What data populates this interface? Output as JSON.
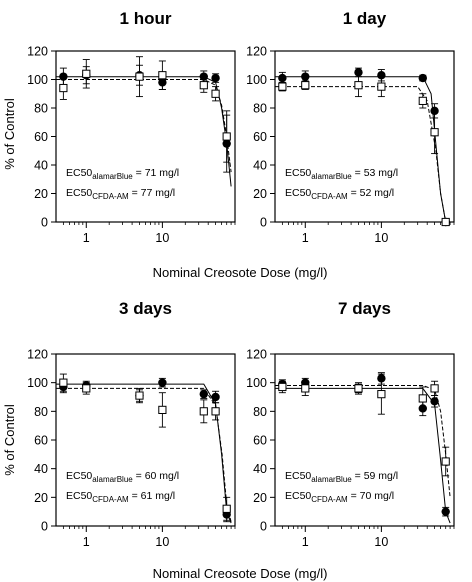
{
  "figure": {
    "xlabel": "Nominal Creosote Dose (mg/l)",
    "ylabel": "% of Control"
  },
  "chart_data": [
    {
      "type": "scatter",
      "title": "1 hour",
      "xscale": "log",
      "xlim": [
        0.4,
        90
      ],
      "ylim": [
        0,
        120
      ],
      "yticks": [
        0,
        20,
        40,
        60,
        80,
        100,
        120
      ],
      "xticks": [
        1,
        10
      ],
      "xtick_labels": [
        "1",
        "10"
      ],
      "annotations": [
        {
          "prefix": "EC50",
          "sub": "alamarBlue",
          "suffix": " = 71 mg/l"
        },
        {
          "prefix": "EC50",
          "sub": "CFDA-AM",
          "suffix": " = 77 mg/l"
        }
      ],
      "series": [
        {
          "marker": "filled-circle",
          "x": [
            0.5,
            1,
            5,
            10,
            35,
            50,
            70
          ],
          "y": [
            102,
            103,
            103,
            98,
            102,
            101,
            55
          ],
          "err": [
            6,
            6,
            7,
            5,
            4,
            3,
            20
          ],
          "fit_x": [
            0.4,
            35,
            50,
            60,
            70,
            80
          ],
          "fit_y": [
            102,
            102,
            98,
            80,
            55,
            25
          ]
        },
        {
          "marker": "open-square",
          "x": [
            0.5,
            1,
            5,
            10,
            35,
            50,
            70
          ],
          "y": [
            94,
            104,
            102,
            103,
            96,
            90,
            60
          ],
          "err": [
            8,
            10,
            14,
            10,
            5,
            5,
            18
          ],
          "fit_x": [
            0.4,
            35,
            50,
            60,
            70,
            80
          ],
          "fit_y": [
            100,
            100,
            96,
            82,
            60,
            35
          ]
        }
      ]
    },
    {
      "type": "scatter",
      "title": "1 day",
      "xscale": "log",
      "xlim": [
        0.4,
        90
      ],
      "ylim": [
        0,
        120
      ],
      "yticks": [
        0,
        20,
        40,
        60,
        80,
        100,
        120
      ],
      "xticks": [
        1,
        10
      ],
      "xtick_labels": [
        "1",
        "10"
      ],
      "annotations": [
        {
          "prefix": "EC50",
          "sub": "alamarBlue",
          "suffix": " = 53 mg/l"
        },
        {
          "prefix": "EC50",
          "sub": "CFDA-AM",
          "suffix": " = 52 mg/l"
        }
      ],
      "series": [
        {
          "marker": "filled-circle",
          "x": [
            0.5,
            1,
            5,
            10,
            35,
            50,
            70
          ],
          "y": [
            101,
            102,
            105,
            103,
            101,
            78,
            0
          ],
          "err": [
            4,
            4,
            3,
            4,
            2,
            5,
            2
          ],
          "fit_x": [
            0.4,
            35,
            45,
            53,
            60,
            70
          ],
          "fit_y": [
            102,
            102,
            90,
            50,
            20,
            0
          ]
        },
        {
          "marker": "open-square",
          "x": [
            0.5,
            1,
            5,
            10,
            35,
            50,
            70
          ],
          "y": [
            95,
            96,
            96,
            95,
            85,
            63,
            0
          ],
          "err": [
            3,
            3,
            8,
            7,
            5,
            15,
            2
          ],
          "fit_x": [
            0.4,
            30,
            40,
            52,
            60,
            70
          ],
          "fit_y": [
            95,
            95,
            85,
            50,
            20,
            0
          ]
        }
      ]
    },
    {
      "type": "scatter",
      "title": "3 days",
      "xscale": "log",
      "xlim": [
        0.4,
        90
      ],
      "ylim": [
        0,
        120
      ],
      "yticks": [
        0,
        20,
        40,
        60,
        80,
        100,
        120
      ],
      "xticks": [
        1,
        10
      ],
      "xtick_labels": [
        "1",
        "10"
      ],
      "annotations": [
        {
          "prefix": "EC50",
          "sub": "alamarBlue",
          "suffix": " = 60 mg/l"
        },
        {
          "prefix": "EC50",
          "sub": "CFDA-AM",
          "suffix": " = 61 mg/l"
        }
      ],
      "series": [
        {
          "marker": "filled-circle",
          "x": [
            0.5,
            1,
            5,
            10,
            35,
            50,
            70
          ],
          "y": [
            97,
            98,
            91,
            100,
            92,
            90,
            8
          ],
          "err": [
            4,
            3,
            4,
            3,
            3,
            4,
            5
          ],
          "fit_x": [
            0.4,
            35,
            50,
            60,
            70,
            80
          ],
          "fit_y": [
            99,
            99,
            85,
            50,
            10,
            2
          ]
        },
        {
          "marker": "open-square",
          "x": [
            0.5,
            1,
            5,
            10,
            35,
            50,
            70
          ],
          "y": [
            100,
            96,
            91,
            81,
            80,
            80,
            12
          ],
          "err": [
            6,
            4,
            5,
            12,
            8,
            6,
            8
          ],
          "fit_x": [
            0.4,
            35,
            50,
            61,
            70,
            80
          ],
          "fit_y": [
            96,
            96,
            84,
            50,
            15,
            3
          ]
        }
      ]
    },
    {
      "type": "scatter",
      "title": "7 days",
      "xscale": "log",
      "xlim": [
        0.4,
        90
      ],
      "ylim": [
        0,
        120
      ],
      "yticks": [
        0,
        20,
        40,
        60,
        80,
        100,
        120
      ],
      "xticks": [
        1,
        10
      ],
      "xtick_labels": [
        "1",
        "10"
      ],
      "annotations": [
        {
          "prefix": "EC50",
          "sub": "alamarBlue",
          "suffix": " = 59 mg/l"
        },
        {
          "prefix": "EC50",
          "sub": "CFDA-AM",
          "suffix": " = 70 mg/l"
        }
      ],
      "series": [
        {
          "marker": "filled-circle",
          "x": [
            0.5,
            1,
            5,
            10,
            35,
            50,
            70
          ],
          "y": [
            99,
            100,
            96,
            103,
            82,
            87,
            10
          ],
          "err": [
            3,
            3,
            3,
            4,
            5,
            4,
            3
          ],
          "fit_x": [
            0.4,
            35,
            50,
            59,
            70,
            80
          ],
          "fit_y": [
            96,
            96,
            85,
            50,
            10,
            2
          ]
        },
        {
          "marker": "open-square",
          "x": [
            0.5,
            1,
            5,
            10,
            35,
            50,
            70
          ],
          "y": [
            97,
            96,
            96,
            92,
            89,
            96,
            45
          ],
          "err": [
            4,
            5,
            4,
            14,
            8,
            5,
            10
          ],
          "fit_x": [
            0.4,
            35,
            50,
            60,
            70,
            80
          ],
          "fit_y": [
            98,
            98,
            95,
            80,
            50,
            20
          ]
        }
      ]
    }
  ]
}
